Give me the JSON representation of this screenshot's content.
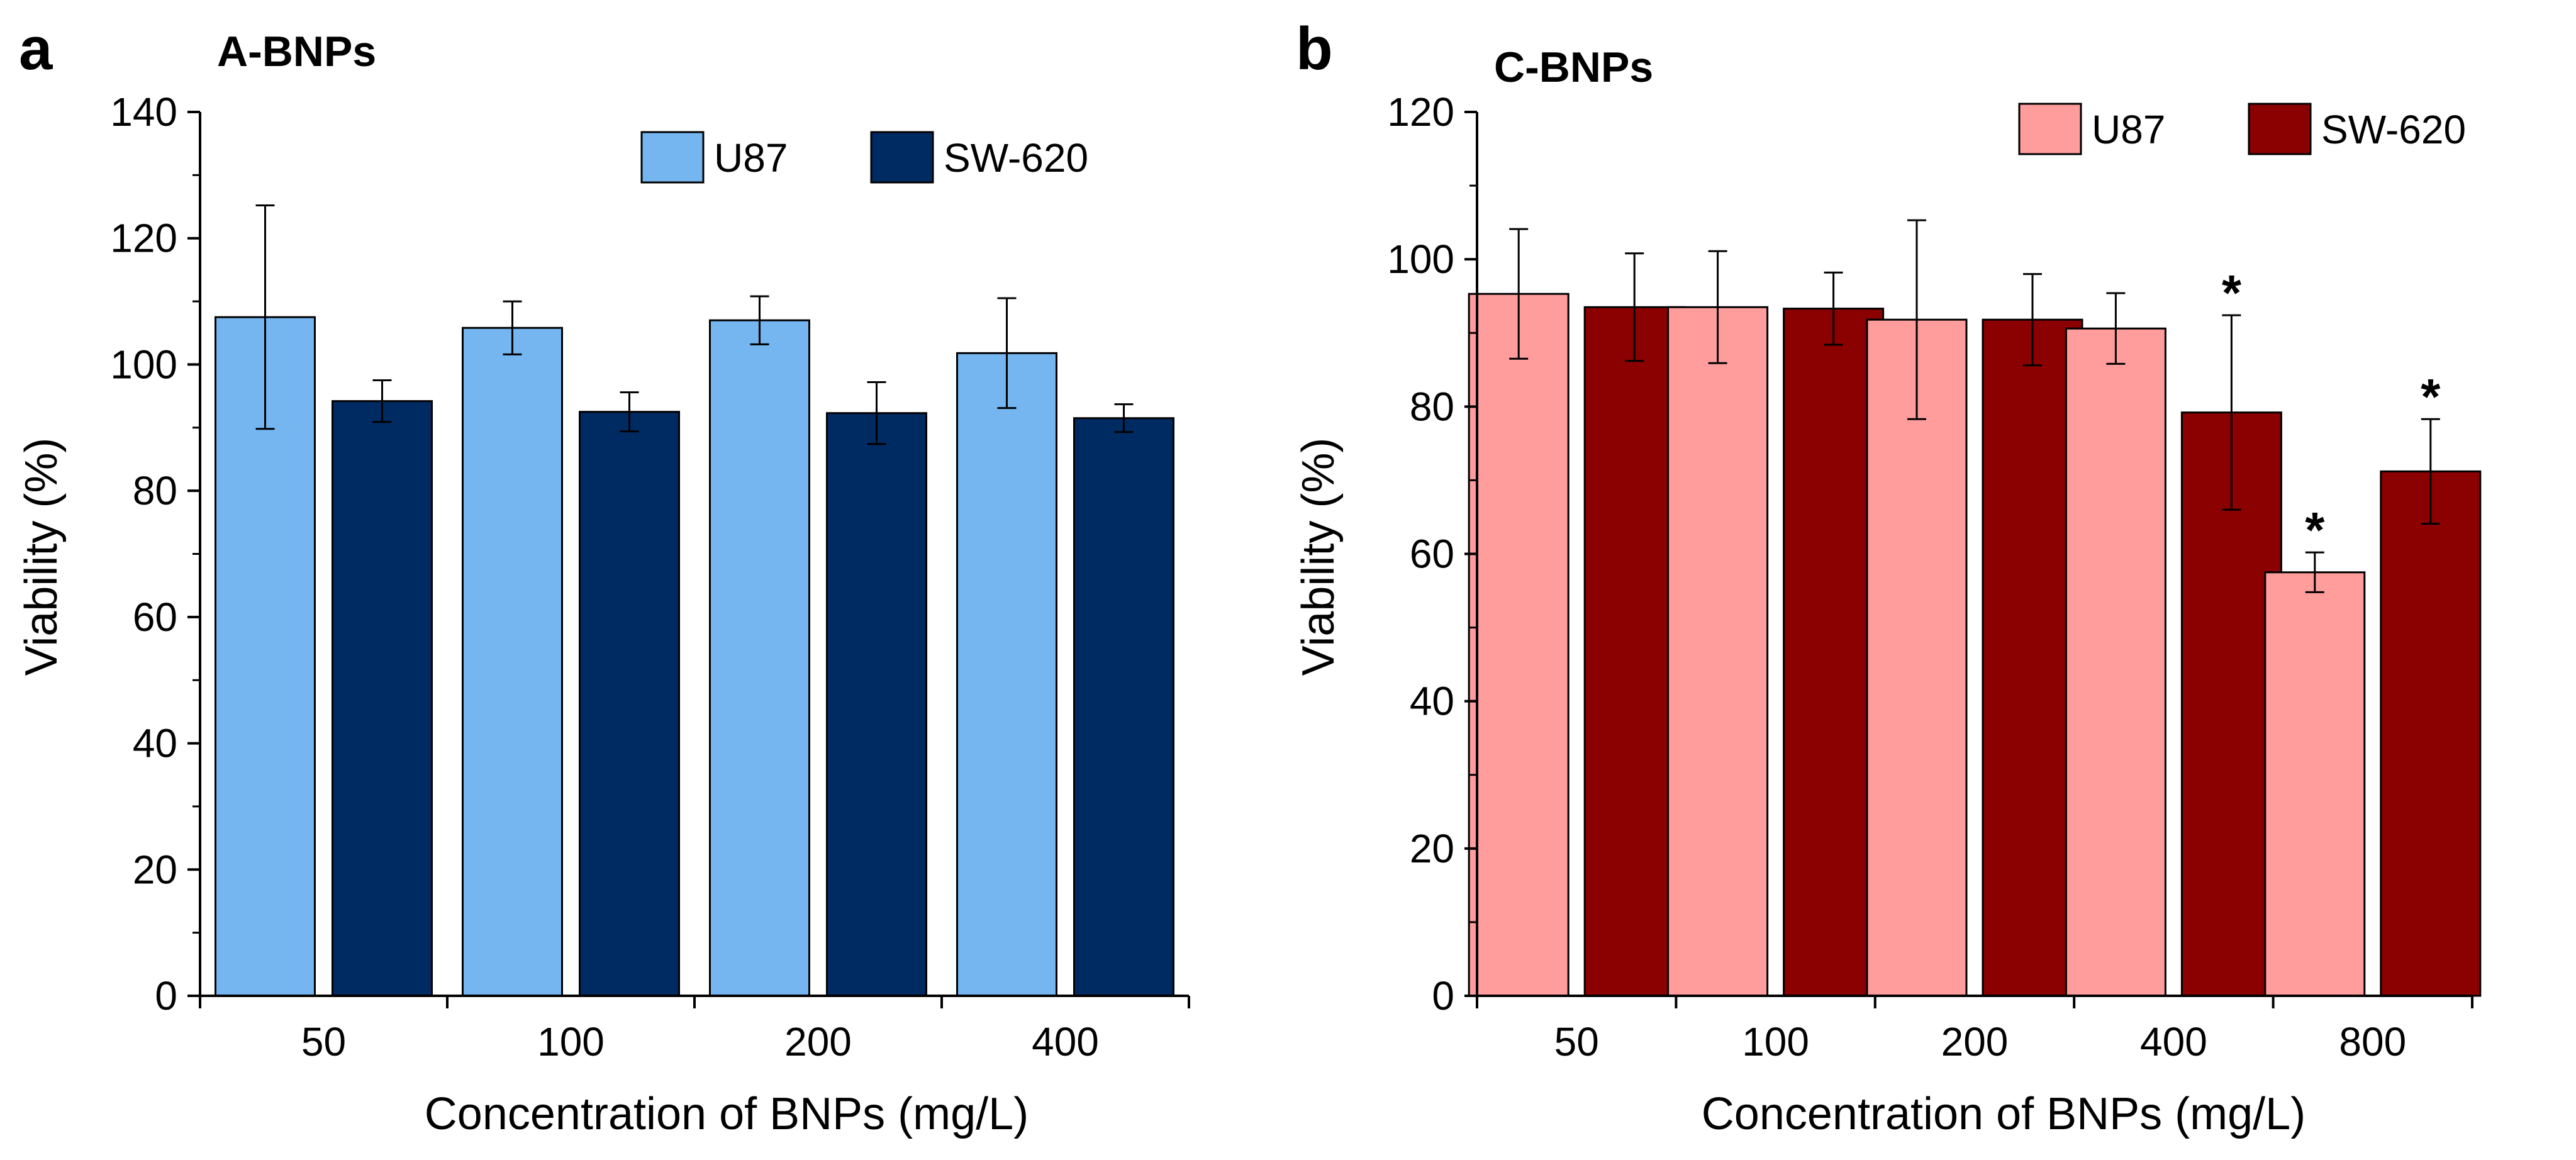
{
  "chart_data": [
    {
      "type": "bar",
      "panel_letter": "a",
      "title": "A-BNPs",
      "xlabel": "Concentration of BNPs (mg/L)",
      "ylabel": "Viability (%)",
      "ylim": [
        0,
        140
      ],
      "yticks": [
        0,
        20,
        40,
        60,
        80,
        100,
        120,
        140
      ],
      "categories": [
        "50",
        "100",
        "200",
        "400"
      ],
      "legend_position": "top-right",
      "series": [
        {
          "name": "U87",
          "color": "#75B6F0",
          "values": [
            107.5,
            105.8,
            107.0,
            101.8
          ],
          "errors": [
            17.7,
            4.2,
            3.8,
            8.7
          ]
        },
        {
          "name": "SW-620",
          "color": "#002B62",
          "values": [
            94.2,
            92.5,
            92.3,
            91.5
          ],
          "errors": [
            3.3,
            3.1,
            4.9,
            2.2
          ]
        }
      ],
      "annotations": []
    },
    {
      "type": "bar",
      "panel_letter": "b",
      "title": "C-BNPs",
      "xlabel": "Concentration of BNPs (mg/L)",
      "ylabel": "Viability (%)",
      "ylim": [
        0,
        120
      ],
      "yticks": [
        0,
        20,
        40,
        60,
        80,
        100,
        120
      ],
      "categories": [
        "50",
        "100",
        "200",
        "400",
        "800"
      ],
      "legend_position": "top-right",
      "series": [
        {
          "name": "U87",
          "color": "#FF9D9D",
          "values": [
            95.3,
            93.5,
            91.8,
            90.6,
            57.5
          ],
          "errors": [
            8.8,
            7.6,
            13.5,
            4.8,
            2.7
          ]
        },
        {
          "name": "SW-620",
          "color": "#8B0000",
          "values": [
            93.5,
            93.3,
            91.8,
            79.2,
            71.2
          ],
          "errors": [
            7.3,
            4.9,
            6.2,
            13.2,
            7.1
          ]
        }
      ],
      "annotations": [
        {
          "text": "*",
          "category": "400",
          "series": "SW-620"
        },
        {
          "text": "*",
          "category": "800",
          "series": "U87"
        },
        {
          "text": "*",
          "category": "800",
          "series": "SW-620"
        }
      ]
    }
  ]
}
